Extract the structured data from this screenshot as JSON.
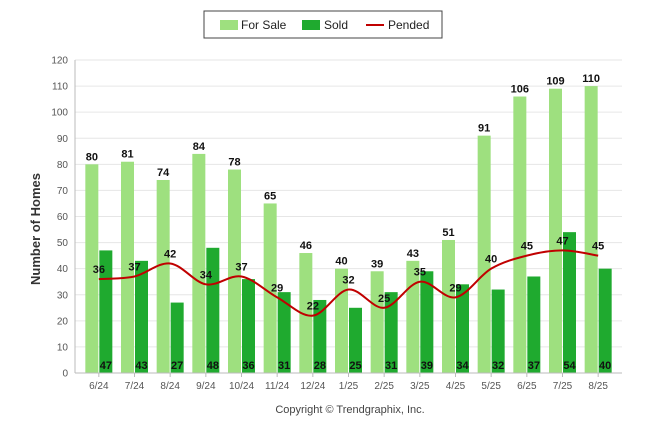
{
  "chart_data": {
    "type": "bar",
    "ylabel": "Number of Homes",
    "ylim": [
      0,
      120
    ],
    "yticks": [
      0,
      10,
      20,
      30,
      40,
      50,
      60,
      70,
      80,
      90,
      100,
      110,
      120
    ],
    "grid": true,
    "legend_position": "top-center",
    "categories": [
      "6/24",
      "7/24",
      "8/24",
      "9/24",
      "10/24",
      "11/24",
      "12/24",
      "1/25",
      "2/25",
      "3/25",
      "4/25",
      "5/25",
      "6/25",
      "7/25",
      "8/25"
    ],
    "series": [
      {
        "name": "For Sale",
        "type": "bar",
        "color": "#9ee07f",
        "values": [
          80,
          81,
          74,
          84,
          78,
          65,
          46,
          40,
          39,
          43,
          51,
          91,
          106,
          109,
          110
        ]
      },
      {
        "name": "Sold",
        "type": "bar",
        "color": "#1faa2f",
        "values": [
          47,
          43,
          27,
          48,
          36,
          31,
          28,
          25,
          31,
          39,
          34,
          32,
          37,
          54,
          40
        ]
      },
      {
        "name": "Pended",
        "type": "line",
        "color": "#c00000",
        "values": [
          36,
          37,
          42,
          34,
          37,
          29,
          22,
          32,
          25,
          35,
          29,
          40,
          45,
          47,
          45
        ]
      }
    ]
  },
  "footer": {
    "copyright": "Copyright © Trendgraphix, Inc."
  }
}
